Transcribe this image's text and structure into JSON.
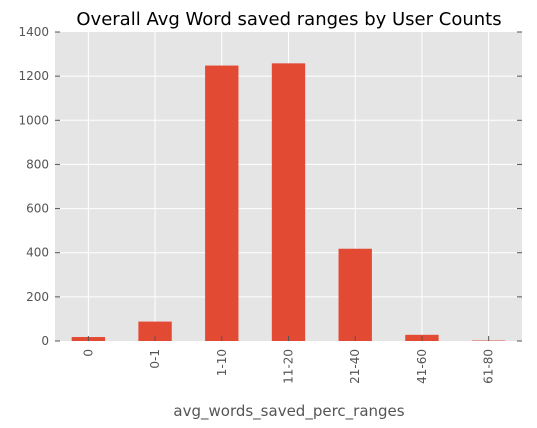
{
  "chart_data": {
    "type": "bar",
    "title": "Overall Avg Word saved ranges by User Counts",
    "xlabel": "avg_words_saved_perc_ranges",
    "ylabel": "",
    "categories": [
      "0",
      "0-1",
      "1-10",
      "11-20",
      "21-40",
      "41-60",
      "61-80"
    ],
    "values": [
      18,
      88,
      1248,
      1258,
      418,
      28,
      2
    ],
    "ylim": [
      0,
      1400
    ],
    "yticks": [
      "0",
      "200",
      "400",
      "600",
      "800",
      "1000",
      "1200",
      "1400"
    ],
    "grid": true,
    "legend": "none",
    "bar_color": "#E24A33",
    "plot_background": "#E5E5E5",
    "grid_color": "#FFFFFF"
  }
}
